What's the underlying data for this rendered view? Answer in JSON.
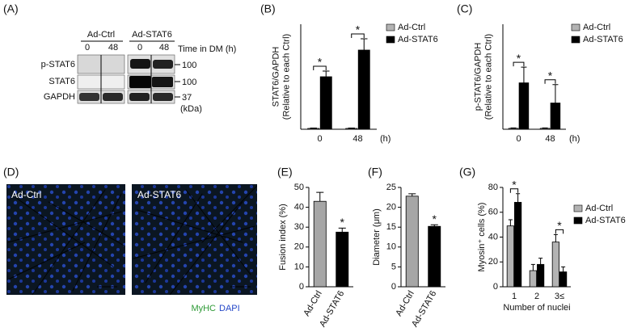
{
  "blot": {
    "panel": "(A)",
    "groups": [
      "Ad-Ctrl",
      "Ad-STAT6"
    ],
    "lanes": [
      "0",
      "48",
      "0",
      "48"
    ],
    "time_label": "Time in DM (h)",
    "rows": [
      "p-STAT6",
      "STAT6",
      "GAPDH"
    ],
    "sizes": [
      100,
      100,
      37
    ],
    "size_unit": "(kDa)"
  },
  "micrographs": {
    "panel": "(D)",
    "labels": [
      "Ad-Ctrl",
      "Ad-STAT6"
    ],
    "stains": [
      "MyHC",
      "DAPI"
    ]
  },
  "chart_data": [
    {
      "type": "bar",
      "panel": "(B)",
      "ylabel": [
        "STAT6/GAPDH",
        "(Relative to each Ctrl)"
      ],
      "categories": [
        "0",
        "48"
      ],
      "x_unit": "(h)",
      "ylim": [
        0,
        130
      ],
      "series": [
        {
          "name": "Ad-Ctrl",
          "color": "#b3b3b3",
          "values": [
            1,
            1
          ],
          "errors": [
            0.5,
            0.5
          ]
        },
        {
          "name": "Ad-STAT6",
          "color": "#000000",
          "values": [
            65,
            98
          ],
          "errors": [
            7,
            14
          ]
        }
      ],
      "significance": [
        "*",
        "*"
      ],
      "significance_style": "bracket"
    },
    {
      "type": "bar",
      "panel": "(C)",
      "ylabel": [
        "p-STAT6/GAPDH",
        "(Relative to each Ctrl)"
      ],
      "categories": [
        "0",
        "48"
      ],
      "x_unit": "(h)",
      "ylim": [
        0,
        120
      ],
      "series": [
        {
          "name": "Ad-Ctrl",
          "color": "#b3b3b3",
          "values": [
            1,
            1
          ],
          "errors": [
            0.5,
            0.5
          ]
        },
        {
          "name": "Ad-STAT6",
          "color": "#000000",
          "values": [
            53,
            30
          ],
          "errors": [
            18,
            21
          ]
        }
      ],
      "significance": [
        "*",
        "*"
      ],
      "significance_style": "bracket"
    },
    {
      "type": "bar",
      "panel": "(E)",
      "ylabel": "Fusion index (%)",
      "categories": [
        "Ad-Ctrl",
        "Ad-STAT6"
      ],
      "xtick_rotation": -60,
      "ylim": [
        0,
        50
      ],
      "yticks": [
        0,
        10,
        20,
        30,
        40,
        50
      ],
      "values": [
        43,
        27.5
      ],
      "errors": [
        4.5,
        2
      ],
      "colors": [
        "#a6a6a6",
        "#000000"
      ],
      "significance": [
        null,
        "*"
      ],
      "significance_style": "above"
    },
    {
      "type": "bar",
      "panel": "(F)",
      "ylabel": "Diameter (μm)",
      "categories": [
        "Ad-Ctrl",
        "Ad-STAT6"
      ],
      "xtick_rotation": -60,
      "ylim": [
        0,
        25
      ],
      "yticks": [
        0,
        5,
        10,
        15,
        20,
        25
      ],
      "values": [
        22.8,
        15.2
      ],
      "errors": [
        0.6,
        0.4
      ],
      "colors": [
        "#a6a6a6",
        "#000000"
      ],
      "significance": [
        null,
        "*"
      ],
      "significance_style": "above"
    },
    {
      "type": "bar",
      "panel": "(G)",
      "ylabel": "Myosin⁺ cells (%)",
      "xlabel": "Number of nuclei",
      "categories": [
        "1",
        "2",
        "3≤"
      ],
      "ylim": [
        0,
        80
      ],
      "yticks": [
        0,
        20,
        40,
        60,
        80
      ],
      "series": [
        {
          "name": "Ad-Ctrl",
          "color": "#b3b3b3",
          "values": [
            49,
            13,
            36
          ],
          "errors": [
            5,
            5,
            6
          ]
        },
        {
          "name": "Ad-STAT6",
          "color": "#000000",
          "values": [
            68,
            18,
            12
          ],
          "errors": [
            7,
            5,
            4
          ]
        }
      ],
      "significance": [
        "*",
        null,
        "*"
      ],
      "significance_style": "bracket"
    }
  ]
}
